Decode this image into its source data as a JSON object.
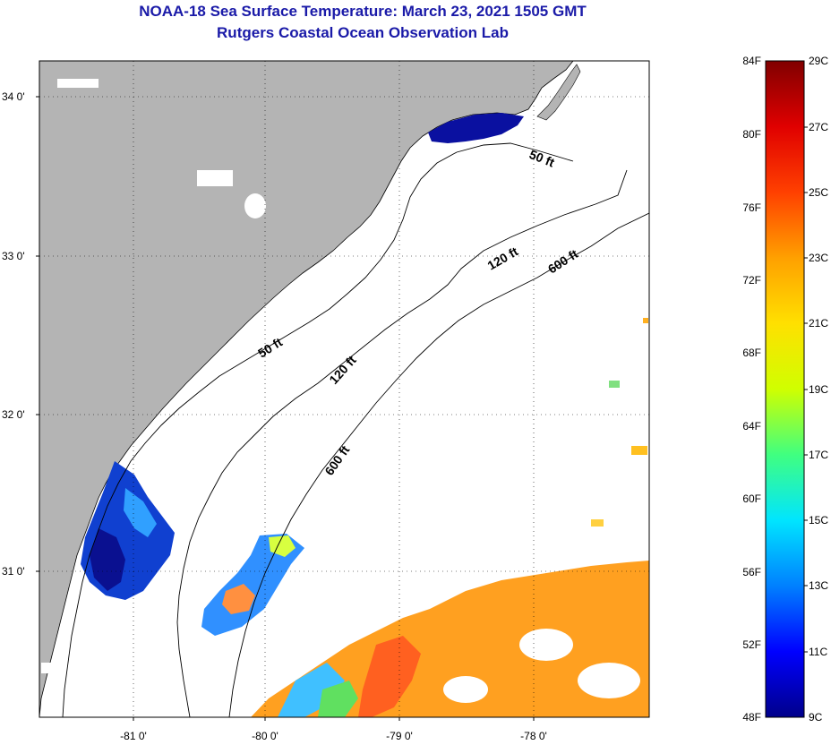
{
  "header": {
    "title": "NOAA-18 Sea Surface Temperature:  March 23, 2021 1505 GMT",
    "subtitle": "Rutgers Coastal Ocean Observation Lab"
  },
  "map": {
    "lat_labels": [
      "34 0'",
      "33 0'",
      "32 0'",
      "31 0'"
    ],
    "lon_labels": [
      "-81 0'",
      "-80 0'",
      "-79 0'",
      "-78 0'"
    ],
    "contour_labels": [
      "50 ft",
      "120 ft",
      "600 ft",
      "50 ft",
      "120 ft",
      "600 ft"
    ],
    "colors": {
      "land": "#b4b4b4",
      "cloud": "#ffffff",
      "coast": "#000000"
    }
  },
  "colorbar": {
    "fahrenheit": [
      "84F",
      "80F",
      "76F",
      "72F",
      "68F",
      "64F",
      "60F",
      "56F",
      "52F",
      "48F"
    ],
    "celsius": [
      "29C",
      "27C",
      "25C",
      "23C",
      "21C",
      "19C",
      "17C",
      "15C",
      "13C",
      "11C",
      "9C"
    ],
    "gradient": [
      "#00008a",
      "#0000ff",
      "#0080ff",
      "#00e5ff",
      "#40ff80",
      "#d0ff00",
      "#ffe000",
      "#ffa000",
      "#ff4000",
      "#e00000",
      "#800000"
    ]
  }
}
